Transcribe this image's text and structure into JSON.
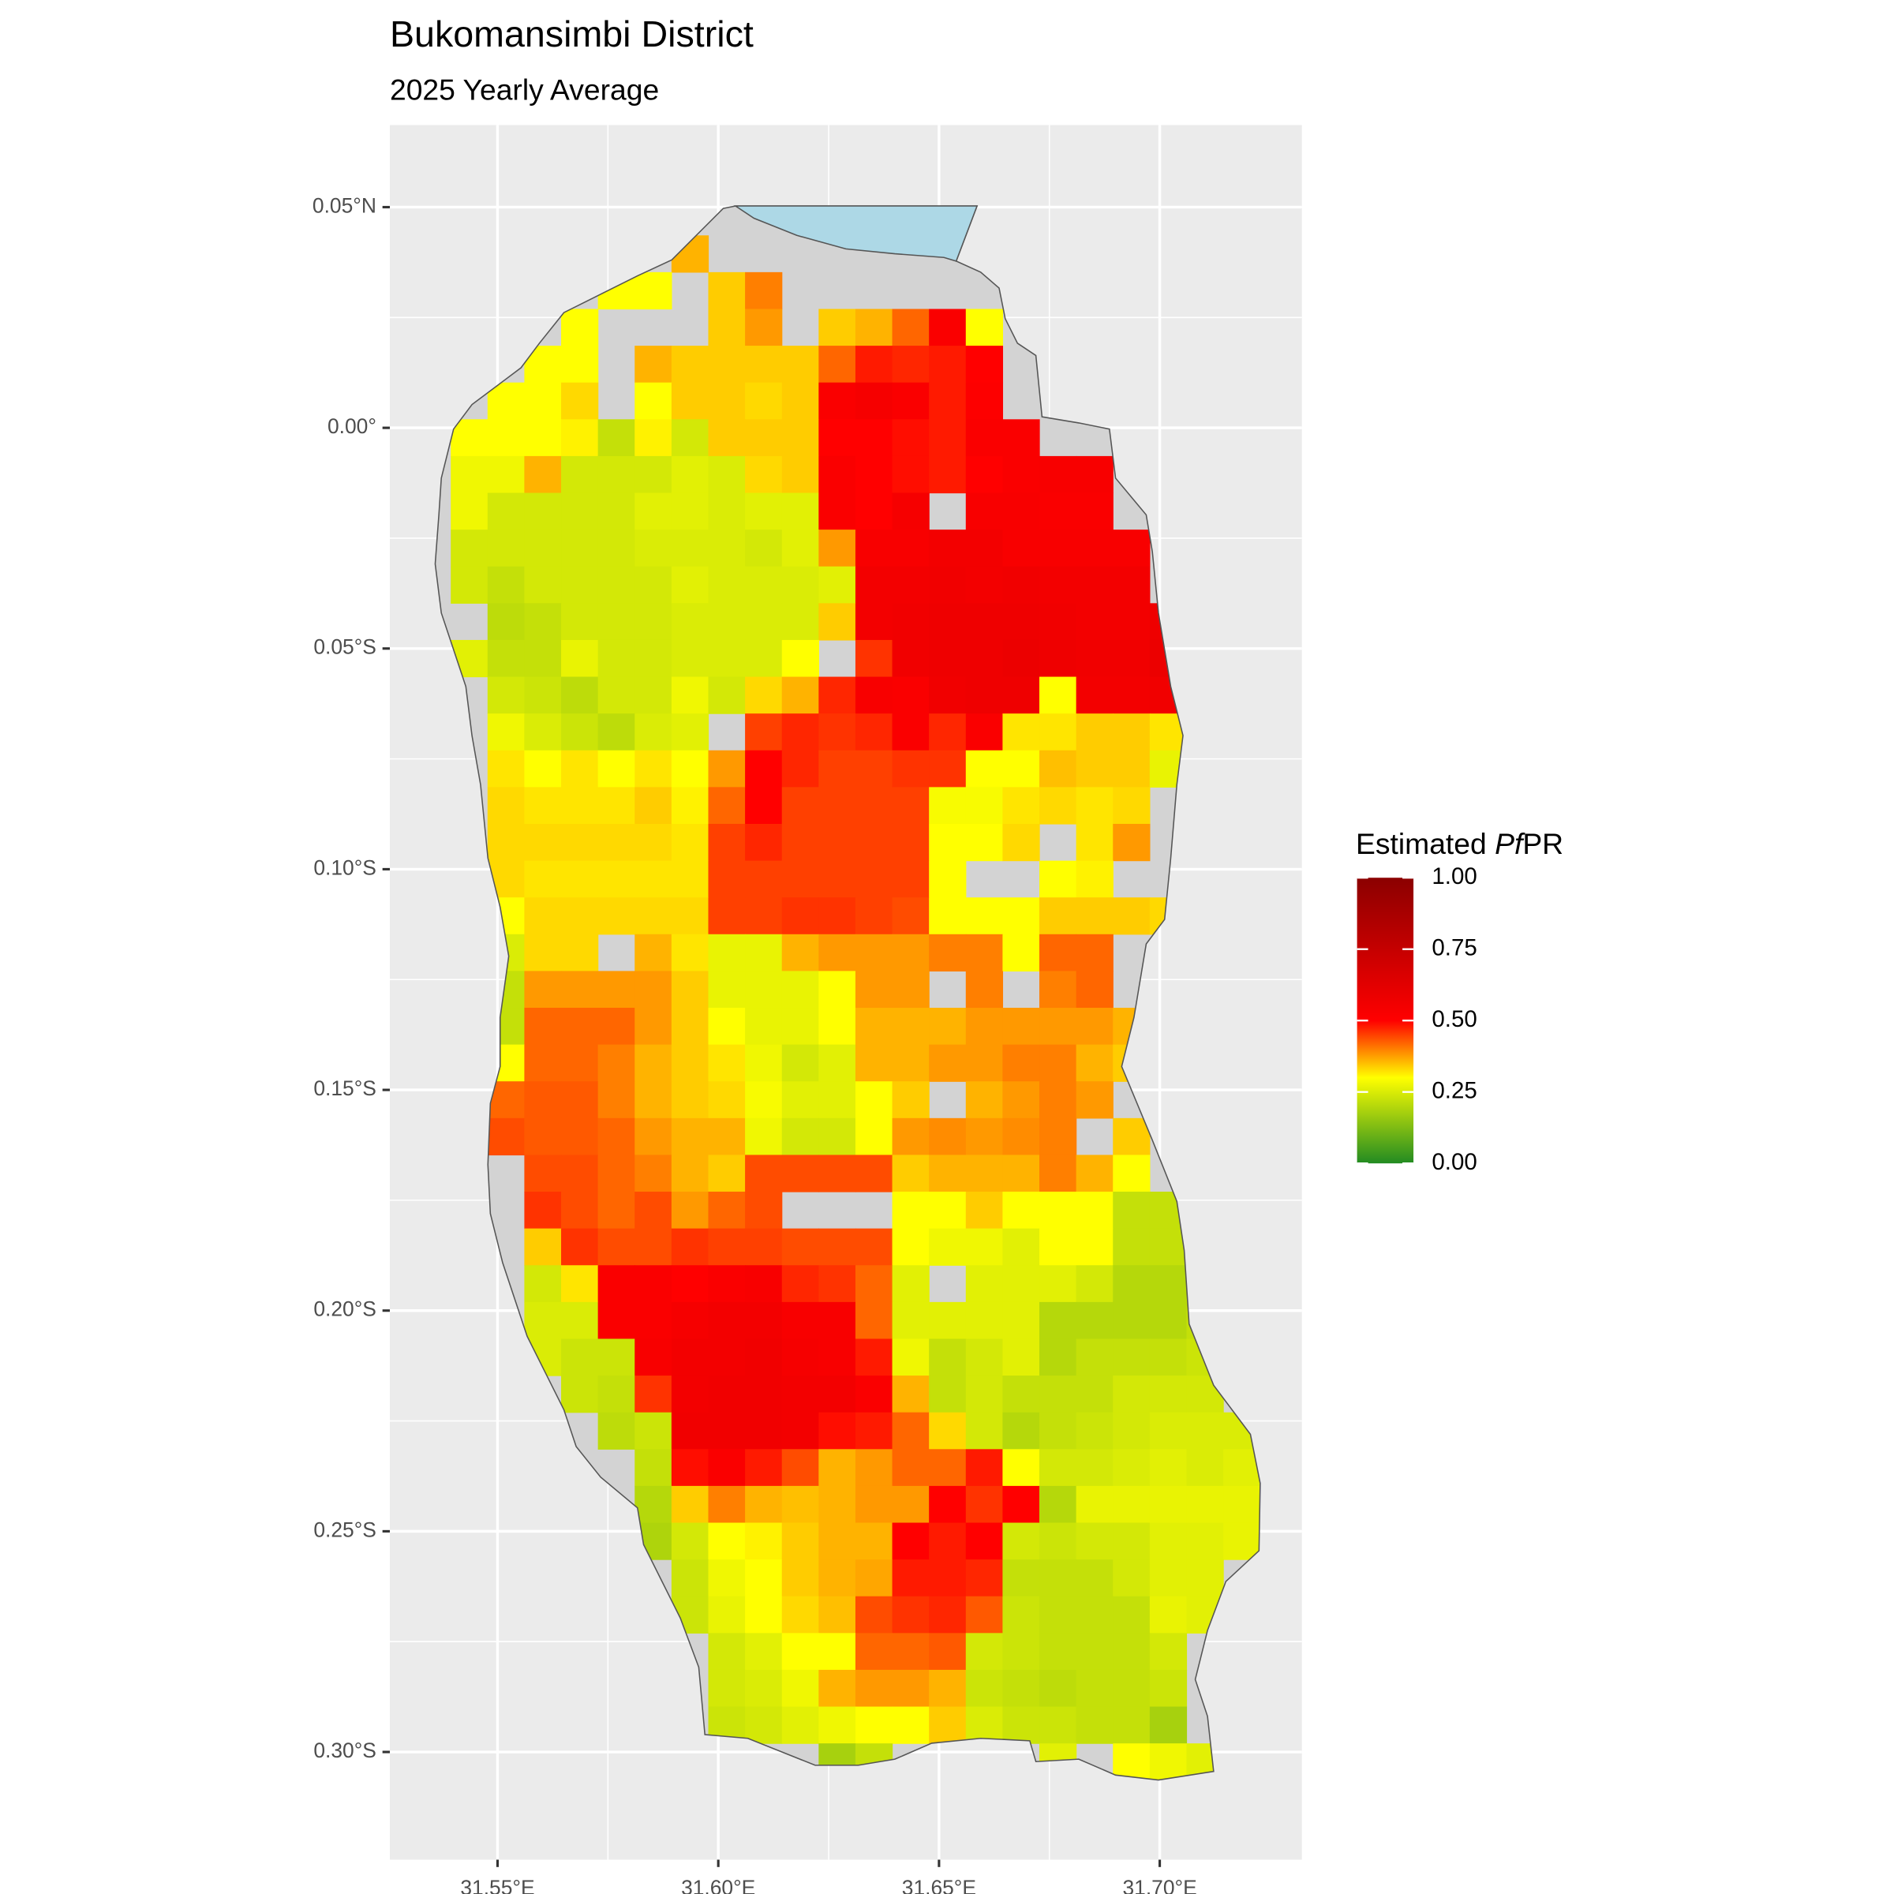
{
  "chart_data": {
    "type": "raster",
    "title": "Bukomansimbi District",
    "subtitle": "2025 Yearly Average",
    "legend_title": {
      "prefix": "Estimated",
      "italic": "Pf",
      "suffix": "PR"
    },
    "xlim": [
      31.5256,
      31.7322
    ],
    "ylim": [
      -0.3244,
      0.0686
    ],
    "xticks": [
      {
        "value": 31.55,
        "label": "31.55°E"
      },
      {
        "value": 31.6,
        "label": "31.60°E"
      },
      {
        "value": 31.65,
        "label": "31.65°E"
      },
      {
        "value": 31.7,
        "label": "31.70°E"
      }
    ],
    "yticks": [
      {
        "value": 0.05,
        "label": "0.05°N"
      },
      {
        "value": 0,
        "label": "0.00°"
      },
      {
        "value": -0.05,
        "label": "0.05°S"
      },
      {
        "value": -0.1,
        "label": "0.10°S"
      },
      {
        "value": -0.15,
        "label": "0.15°S"
      },
      {
        "value": -0.2,
        "label": "0.20°S"
      },
      {
        "value": -0.25,
        "label": "0.25°S"
      },
      {
        "value": -0.3,
        "label": "0.30°S"
      }
    ],
    "grid": true,
    "lon0": 31.5394,
    "lat0": 0.0436,
    "cell": 0.008333,
    "colorscale": [
      {
        "value": 0,
        "color": "#228B22"
      },
      {
        "value": 0.3,
        "color": "#FFFF00"
      },
      {
        "value": 0.5,
        "color": "#FF0000"
      },
      {
        "value": 1,
        "color": "#8B0000"
      }
    ],
    "legend_lim": [
      0,
      1
    ],
    "legend_ticks": [
      {
        "value": 0,
        "label": "0.00"
      },
      {
        "value": 0.25,
        "label": "0.25"
      },
      {
        "value": 0.5,
        "label": "0.50"
      },
      {
        "value": 0.75,
        "label": "0.75"
      },
      {
        "value": 1,
        "label": "1.00"
      }
    ],
    "values": [
      [
        null,
        null,
        null,
        null,
        null,
        null,
        0.36,
        null,
        null,
        null,
        null,
        null,
        null,
        null,
        null,
        null,
        null,
        null,
        null,
        null,
        null,
        null
      ],
      [
        null,
        null,
        null,
        null,
        0.3,
        0.3,
        null,
        0.34,
        0.4,
        null,
        null,
        null,
        null,
        null,
        null,
        null,
        null,
        null,
        null,
        null,
        null,
        null
      ],
      [
        null,
        null,
        null,
        0.3,
        null,
        null,
        null,
        0.34,
        0.38,
        null,
        0.34,
        0.36,
        0.42,
        0.52,
        0.3,
        null,
        null,
        null,
        null,
        null,
        null,
        null
      ],
      [
        null,
        null,
        0.3,
        0.3,
        null,
        0.36,
        0.34,
        0.34,
        0.34,
        0.34,
        0.42,
        0.48,
        0.47,
        0.48,
        0.5,
        null,
        null,
        null,
        null,
        null,
        null,
        null
      ],
      [
        null,
        0.3,
        0.3,
        0.33,
        null,
        0.3,
        0.34,
        0.34,
        0.33,
        0.34,
        0.52,
        0.54,
        0.52,
        0.48,
        0.51,
        null,
        null,
        null,
        null,
        null,
        null,
        null
      ],
      [
        0.3,
        0.3,
        0.3,
        0.31,
        0.22,
        0.31,
        0.24,
        0.34,
        0.34,
        0.34,
        0.5,
        0.5,
        0.49,
        0.48,
        0.52,
        0.52,
        null,
        null,
        null,
        null,
        null,
        null
      ],
      [
        0.28,
        0.28,
        0.36,
        0.24,
        0.24,
        0.24,
        0.26,
        0.25,
        0.33,
        0.34,
        0.52,
        0.5,
        0.49,
        0.48,
        0.5,
        0.52,
        0.53,
        0.53,
        null,
        null,
        null,
        null
      ],
      [
        0.28,
        0.24,
        0.24,
        0.24,
        0.24,
        0.26,
        0.26,
        0.25,
        0.26,
        0.26,
        0.52,
        0.5,
        0.54,
        null,
        0.53,
        0.53,
        0.52,
        0.52,
        null,
        null,
        null,
        null
      ],
      [
        0.24,
        0.24,
        0.24,
        0.24,
        0.24,
        0.25,
        0.25,
        0.25,
        0.24,
        0.26,
        0.38,
        0.53,
        0.53,
        0.55,
        0.55,
        0.53,
        0.53,
        0.53,
        0.53,
        null,
        null,
        null
      ],
      [
        0.24,
        0.22,
        0.24,
        0.24,
        0.24,
        0.24,
        0.26,
        0.25,
        0.25,
        0.25,
        0.26,
        0.55,
        0.55,
        0.56,
        0.55,
        0.56,
        0.55,
        0.55,
        0.55,
        null,
        null,
        null
      ],
      [
        null,
        0.21,
        0.22,
        0.24,
        0.24,
        0.24,
        0.25,
        0.25,
        0.25,
        0.25,
        0.34,
        0.55,
        0.56,
        0.57,
        0.57,
        0.57,
        0.56,
        0.55,
        0.55,
        0.57,
        null,
        null
      ],
      [
        0.26,
        0.22,
        0.22,
        0.27,
        0.24,
        0.24,
        0.25,
        0.25,
        0.25,
        0.3,
        null,
        0.46,
        0.56,
        0.57,
        0.57,
        0.58,
        0.57,
        0.56,
        0.56,
        0.58,
        null,
        null
      ],
      [
        null,
        0.24,
        0.23,
        0.21,
        0.24,
        0.24,
        0.28,
        0.24,
        0.33,
        0.36,
        0.47,
        0.53,
        0.52,
        0.56,
        0.57,
        0.57,
        0.3,
        0.55,
        0.55,
        0.56,
        null,
        null
      ],
      [
        null,
        0.28,
        0.25,
        0.23,
        0.21,
        0.25,
        0.26,
        null,
        0.45,
        0.47,
        0.46,
        0.47,
        0.52,
        0.47,
        0.52,
        0.32,
        0.32,
        0.34,
        0.34,
        0.32,
        null,
        null
      ],
      [
        null,
        0.32,
        0.3,
        0.32,
        0.3,
        0.32,
        0.3,
        0.38,
        0.5,
        0.47,
        0.45,
        0.45,
        0.46,
        0.46,
        0.3,
        0.3,
        0.35,
        0.34,
        0.34,
        0.27,
        null,
        null
      ],
      [
        null,
        0.33,
        0.32,
        0.32,
        0.32,
        0.34,
        0.31,
        0.42,
        0.5,
        0.45,
        0.45,
        0.45,
        0.45,
        0.29,
        0.29,
        0.32,
        0.33,
        0.32,
        0.33,
        null,
        null,
        null
      ],
      [
        null,
        0.33,
        0.33,
        0.33,
        0.33,
        0.33,
        0.32,
        0.45,
        0.47,
        0.45,
        0.45,
        0.45,
        0.45,
        0.3,
        0.3,
        0.33,
        null,
        0.32,
        0.38,
        null,
        null,
        null
      ],
      [
        null,
        0.33,
        0.32,
        0.32,
        0.32,
        0.32,
        0.32,
        0.45,
        0.45,
        0.45,
        0.45,
        0.45,
        0.45,
        0.3,
        null,
        null,
        0.3,
        0.31,
        null,
        null,
        null,
        null
      ],
      [
        null,
        0.3,
        0.33,
        0.33,
        0.33,
        0.33,
        0.33,
        0.45,
        0.45,
        0.46,
        0.46,
        0.45,
        0.44,
        0.3,
        0.3,
        0.3,
        0.34,
        0.34,
        0.34,
        0.33,
        null,
        null
      ],
      [
        null,
        0.25,
        0.33,
        0.33,
        null,
        0.36,
        0.32,
        0.27,
        0.27,
        0.36,
        0.38,
        0.38,
        0.38,
        0.4,
        0.4,
        0.3,
        0.42,
        0.42,
        null,
        null,
        null,
        null
      ],
      [
        null,
        0.22,
        0.38,
        0.38,
        0.38,
        0.38,
        0.34,
        0.27,
        0.27,
        0.27,
        0.3,
        0.38,
        0.38,
        null,
        0.4,
        null,
        0.4,
        0.42,
        null,
        null,
        null,
        null
      ],
      [
        null,
        0.22,
        0.42,
        0.42,
        0.42,
        0.38,
        0.34,
        0.3,
        0.27,
        0.27,
        0.3,
        0.36,
        0.36,
        0.36,
        0.38,
        0.38,
        0.38,
        0.38,
        0.36,
        null,
        null,
        null
      ],
      [
        null,
        0.3,
        0.42,
        0.42,
        0.4,
        0.36,
        0.34,
        0.32,
        0.28,
        0.24,
        0.26,
        0.36,
        0.36,
        0.38,
        0.38,
        0.4,
        0.4,
        0.36,
        0.34,
        null,
        null,
        null
      ],
      [
        null,
        0.42,
        0.43,
        0.43,
        0.4,
        0.36,
        0.34,
        0.33,
        0.29,
        0.26,
        0.26,
        0.3,
        0.34,
        null,
        0.36,
        0.38,
        0.4,
        0.38,
        null,
        null,
        null,
        null
      ],
      [
        null,
        0.44,
        0.43,
        0.43,
        0.42,
        0.38,
        0.36,
        0.36,
        0.28,
        0.24,
        0.24,
        0.3,
        0.38,
        0.39,
        0.38,
        0.39,
        0.4,
        null,
        0.34,
        null,
        null,
        null
      ],
      [
        null,
        null,
        0.44,
        0.44,
        0.42,
        0.4,
        0.36,
        0.34,
        0.44,
        0.44,
        0.44,
        0.44,
        0.34,
        0.36,
        0.36,
        0.36,
        0.4,
        0.36,
        0.3,
        null,
        null,
        null
      ],
      [
        null,
        null,
        0.46,
        0.44,
        0.42,
        0.44,
        0.38,
        0.42,
        0.44,
        null,
        null,
        null,
        0.3,
        0.3,
        0.34,
        0.3,
        0.3,
        0.3,
        0.22,
        0.22,
        null,
        null
      ],
      [
        null,
        null,
        0.34,
        0.46,
        0.44,
        0.44,
        0.46,
        0.45,
        0.45,
        0.44,
        0.44,
        0.44,
        0.3,
        0.28,
        0.28,
        0.26,
        0.3,
        0.3,
        0.22,
        0.22,
        0.22,
        null
      ],
      [
        null,
        null,
        0.24,
        0.32,
        0.52,
        0.52,
        0.5,
        0.52,
        0.53,
        0.47,
        0.46,
        0.42,
        0.26,
        null,
        0.26,
        0.26,
        0.26,
        0.24,
        0.2,
        0.2,
        0.22,
        null
      ],
      [
        null,
        null,
        0.25,
        0.25,
        0.52,
        0.52,
        0.54,
        0.55,
        0.55,
        0.53,
        0.53,
        0.42,
        0.26,
        0.26,
        0.26,
        0.26,
        0.2,
        0.2,
        0.2,
        0.2,
        0.22,
        null
      ],
      [
        null,
        null,
        0.25,
        0.23,
        0.23,
        0.53,
        0.55,
        0.55,
        0.56,
        0.54,
        0.53,
        0.48,
        0.28,
        0.22,
        0.24,
        0.26,
        0.2,
        0.22,
        0.22,
        0.22,
        0.23,
        null
      ],
      [
        null,
        null,
        null,
        0.23,
        0.22,
        0.46,
        0.55,
        0.56,
        0.56,
        0.55,
        0.55,
        0.52,
        0.36,
        0.22,
        0.24,
        0.22,
        0.22,
        0.22,
        0.24,
        0.24,
        0.24,
        null
      ],
      [
        null,
        null,
        null,
        null,
        0.21,
        0.23,
        0.56,
        0.56,
        0.56,
        0.55,
        0.49,
        0.48,
        0.42,
        0.33,
        0.24,
        0.2,
        0.22,
        0.23,
        0.24,
        0.25,
        0.25,
        0.25
      ],
      [
        null,
        null,
        null,
        null,
        null,
        0.22,
        0.49,
        0.52,
        0.48,
        0.44,
        0.36,
        0.38,
        0.42,
        0.42,
        0.48,
        0.3,
        0.24,
        0.24,
        0.25,
        0.26,
        0.25,
        0.26
      ],
      [
        null,
        null,
        null,
        null,
        null,
        0.2,
        0.34,
        0.4,
        0.36,
        0.35,
        0.36,
        0.38,
        0.38,
        0.5,
        0.46,
        0.5,
        0.2,
        0.27,
        0.27,
        0.27,
        0.27,
        0.27
      ],
      [
        null,
        null,
        null,
        null,
        null,
        0.19,
        0.24,
        0.3,
        0.31,
        0.34,
        0.36,
        0.36,
        0.5,
        0.48,
        0.5,
        0.24,
        0.23,
        0.24,
        0.24,
        0.26,
        0.26,
        0.27
      ],
      [
        null,
        null,
        null,
        null,
        null,
        null,
        0.23,
        0.28,
        0.3,
        0.34,
        0.36,
        0.37,
        0.48,
        0.48,
        0.47,
        0.22,
        0.22,
        0.22,
        0.24,
        0.26,
        0.26,
        null
      ],
      [
        null,
        null,
        null,
        null,
        null,
        null,
        0.23,
        0.27,
        0.3,
        0.33,
        0.35,
        0.44,
        0.46,
        0.47,
        0.43,
        0.23,
        0.22,
        0.22,
        0.22,
        0.27,
        0.26,
        null
      ],
      [
        null,
        null,
        null,
        null,
        null,
        null,
        null,
        0.24,
        0.26,
        0.3,
        0.3,
        0.42,
        0.42,
        0.43,
        0.24,
        0.23,
        0.22,
        0.22,
        0.22,
        0.24,
        null,
        null
      ],
      [
        null,
        null,
        null,
        null,
        null,
        null,
        null,
        0.24,
        0.25,
        0.28,
        0.36,
        0.38,
        0.38,
        0.36,
        0.23,
        0.22,
        0.21,
        0.22,
        0.22,
        0.23,
        null,
        null
      ],
      [
        null,
        null,
        null,
        null,
        null,
        null,
        null,
        0.23,
        0.24,
        0.26,
        0.28,
        0.3,
        0.3,
        0.34,
        0.25,
        0.23,
        0.23,
        0.22,
        0.22,
        0.18,
        null,
        null
      ],
      [
        null,
        null,
        null,
        null,
        null,
        null,
        null,
        null,
        null,
        null,
        0.18,
        0.22,
        null,
        null,
        null,
        null,
        0.26,
        null,
        0.3,
        0.28,
        0.26,
        null
      ]
    ]
  }
}
